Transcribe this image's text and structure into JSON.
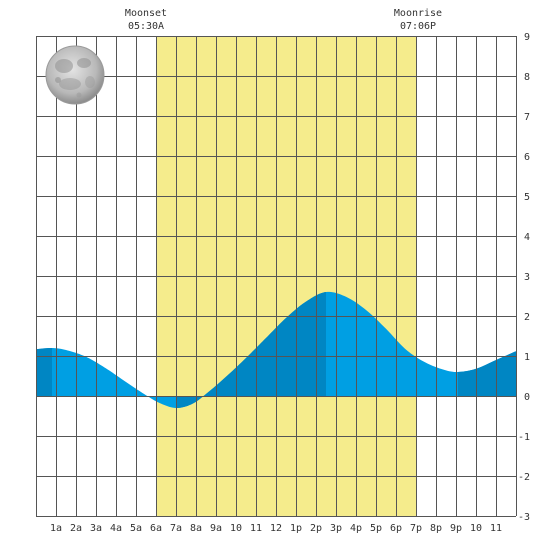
{
  "chart_data": {
    "type": "area",
    "title": "",
    "xlabel": "",
    "ylabel": "",
    "x_ticks": [
      "1a",
      "2a",
      "3a",
      "4a",
      "5a",
      "6a",
      "7a",
      "8a",
      "9a",
      "10",
      "11",
      "12",
      "1p",
      "2p",
      "3p",
      "4p",
      "5p",
      "6p",
      "7p",
      "8p",
      "9p",
      "10",
      "11"
    ],
    "xlim": [
      0,
      24
    ],
    "ylim": [
      -3,
      9
    ],
    "y_ticks": [
      "-3",
      "-2",
      "-1",
      "0",
      "1",
      "2",
      "3",
      "4",
      "5",
      "6",
      "7",
      "8",
      "9"
    ],
    "grid": true,
    "daylight_band": {
      "start_hour": 6,
      "end_hour": 19,
      "color": "#f5ec8c"
    },
    "extremes": [
      {
        "time_hour": 0.8,
        "height": 1.2,
        "kind": "high"
      },
      {
        "time_hour": 7.0,
        "height": -0.3,
        "kind": "low"
      },
      {
        "time_hour": 14.5,
        "height": 2.6,
        "kind": "high"
      },
      {
        "time_hour": 21.1,
        "height": 0.6,
        "kind": "low"
      }
    ],
    "series": [
      {
        "x": [
          0,
          0.8,
          1.5,
          2.5,
          3.5,
          4.5,
          5.5,
          6.2,
          7.0,
          7.8,
          8.5,
          9.5,
          10.5,
          11.5,
          12.5,
          13.5,
          14.5,
          15.5,
          16.5,
          17.5,
          18.5,
          19.5,
          20.5,
          21.1,
          22.0,
          23.0,
          24.0
        ],
        "y": [
          1.17,
          1.2,
          1.15,
          0.98,
          0.69,
          0.35,
          0.02,
          -0.18,
          -0.3,
          -0.2,
          0.05,
          0.48,
          0.95,
          1.45,
          1.95,
          2.36,
          2.6,
          2.48,
          2.15,
          1.68,
          1.16,
          0.83,
          0.64,
          0.6,
          0.68,
          0.9,
          1.12
        ]
      }
    ],
    "rising_shade_intervals": [
      [
        0,
        0.8
      ],
      [
        7.0,
        14.5
      ],
      [
        21.1,
        24
      ]
    ],
    "colors": {
      "falling": "#009fe3",
      "rising": "#0086c3",
      "grid": "#555555",
      "background": "#ffffff"
    },
    "moon_phase_icon": "full-moon-icon"
  },
  "moon_events": [
    {
      "label": "Moonset",
      "time": "05:30A",
      "hour": 5.5
    },
    {
      "label": "Moonrise",
      "time": "07:06P",
      "hour": 19.1
    }
  ]
}
